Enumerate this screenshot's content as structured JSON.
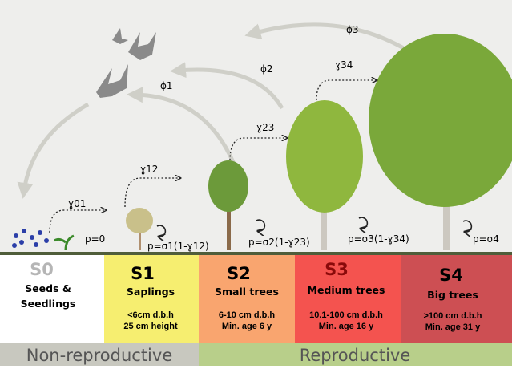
{
  "dispersal": [
    "ϕ1",
    "ϕ2",
    "ϕ3"
  ],
  "transitions": [
    "ɣ01",
    "ɣ12",
    "ɣ23",
    "ɣ34"
  ],
  "stasis": [
    "p=0",
    "p=σ1(1-ɣ12)",
    "p=σ2(1-ɣ23)",
    "p=σ3(1-ɣ34)",
    "p=σ4"
  ],
  "stages": [
    {
      "code": "S0",
      "name": [
        "Seeds &",
        "Seedlings"
      ]
    },
    {
      "code": "S1",
      "name": "Saplings",
      "size": "<6cm d.b.h",
      "age": "25 cm height"
    },
    {
      "code": "S2",
      "name": "Small trees",
      "size": "6-10 cm d.b.h",
      "age": "Min. age 6 y"
    },
    {
      "code": "S3",
      "name": "Medium trees",
      "size": "10.1-100 cm d.b.h",
      "age": "Min. age 16 y"
    },
    {
      "code": "S4",
      "name": "Big trees",
      "size": ">100 cm d.b.h",
      "age": "Min. age 31 y"
    }
  ],
  "groups": [
    "Non-reproductive",
    "Reproductive"
  ]
}
